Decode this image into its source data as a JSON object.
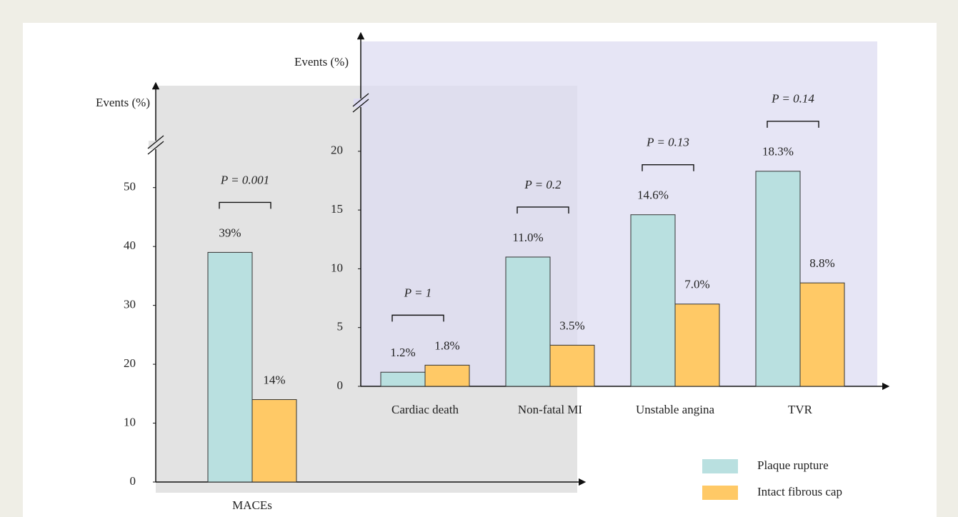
{
  "chart_data": [
    {
      "type": "bar",
      "y_label": "Events (%)",
      "categories": [
        "MACEs"
      ],
      "series": [
        {
          "name": "Plaque rupture",
          "color": "#b9e0e0",
          "values": [
            39
          ],
          "value_labels": [
            "39%"
          ]
        },
        {
          "name": "Intact fibrous cap",
          "color": "#ffc966",
          "values": [
            14
          ],
          "value_labels": [
            "14%"
          ]
        }
      ],
      "annotations": [
        "P = 0.001"
      ],
      "ylim": [
        0,
        57
      ],
      "yticks": [
        0,
        10,
        20,
        30,
        40,
        50
      ],
      "background": "#e3e3e3"
    },
    {
      "type": "bar",
      "y_label": "Events (%)",
      "categories": [
        "Cardiac death",
        "Non-fatal MI",
        "Unstable angina",
        "TVR"
      ],
      "series": [
        {
          "name": "Plaque rupture",
          "color": "#b9e0e0",
          "values": [
            1.2,
            11.0,
            14.6,
            18.3
          ],
          "value_labels": [
            "1.2%",
            "11.0%",
            "14.6%",
            "18.3%"
          ]
        },
        {
          "name": "Intact fibrous cap",
          "color": "#ffc966",
          "values": [
            1.8,
            3.5,
            7.0,
            8.8
          ],
          "value_labels": [
            "1.8%",
            "3.5%",
            "7.0%",
            "8.8%"
          ]
        }
      ],
      "annotations": [
        "P = 1",
        "P = 0.2",
        "P = 0.13",
        "P = 0.14"
      ],
      "ylim": [
        0,
        24
      ],
      "yticks": [
        0,
        5,
        10,
        15,
        20
      ],
      "background": "#dedcf2"
    }
  ]
}
